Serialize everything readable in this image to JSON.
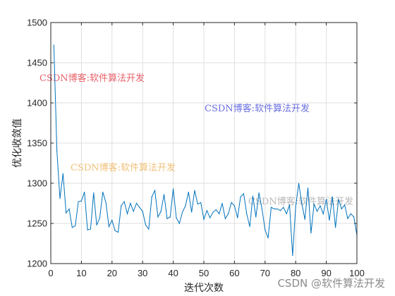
{
  "chart_data": {
    "type": "line",
    "xlabel": "迭代次数",
    "ylabel": "优化收敛值",
    "xlim": [
      0,
      100
    ],
    "ylim": [
      1200,
      1500
    ],
    "xticks": [
      0,
      10,
      20,
      30,
      40,
      50,
      60,
      70,
      80,
      90,
      100
    ],
    "yticks": [
      1200,
      1250,
      1300,
      1350,
      1400,
      1450,
      1500
    ],
    "grid": true,
    "line_color": "#0072bd",
    "series": [
      {
        "x": [
          1,
          2,
          3,
          4,
          5,
          6,
          7,
          8,
          9,
          10,
          11,
          12,
          13,
          14,
          15,
          16,
          17,
          18,
          19,
          20,
          21,
          22,
          23,
          24,
          25,
          26,
          27,
          28,
          29,
          30,
          31,
          32,
          33,
          34,
          35,
          36,
          37,
          38,
          39,
          40,
          41,
          42,
          43,
          44,
          45,
          46,
          47,
          48,
          49,
          50,
          51,
          52,
          53,
          54,
          55,
          56,
          57,
          58,
          59,
          60,
          61,
          62,
          63,
          64,
          65,
          66,
          67,
          68,
          69,
          70,
          71,
          72,
          73,
          74,
          75,
          76,
          77,
          78,
          79,
          80,
          81,
          82,
          83,
          84,
          85,
          86,
          87,
          88,
          89,
          90,
          91,
          92,
          93,
          94,
          95,
          96,
          97,
          98,
          99,
          100
        ],
        "y": [
          1472,
          1340,
          1281,
          1312,
          1263,
          1268,
          1245,
          1247,
          1277,
          1278,
          1289,
          1242,
          1243,
          1288,
          1248,
          1257,
          1289,
          1276,
          1246,
          1254,
          1241,
          1239,
          1272,
          1277,
          1262,
          1275,
          1265,
          1275,
          1270,
          1265,
          1248,
          1243,
          1283,
          1291,
          1258,
          1265,
          1286,
          1256,
          1258,
          1293,
          1257,
          1250,
          1264,
          1272,
          1289,
          1264,
          1291,
          1274,
          1276,
          1255,
          1266,
          1257,
          1264,
          1267,
          1262,
          1275,
          1256,
          1262,
          1276,
          1272,
          1257,
          1283,
          1287,
          1262,
          1246,
          1284,
          1258,
          1288,
          1268,
          1242,
          1232,
          1270,
          1268,
          1268,
          1266,
          1270,
          1262,
          1273,
          1210,
          1271,
          1300,
          1275,
          1255,
          1294,
          1238,
          1274,
          1265,
          1272,
          1262,
          1280,
          1254,
          1283,
          1245,
          1280,
          1268,
          1273,
          1256,
          1262,
          1258,
          1235
        ]
      }
    ]
  },
  "watermarks": [
    {
      "text": "CSDN博客:软件算法开发",
      "color": "#e8606a"
    },
    {
      "text": "CSDN博客:软件算法开发",
      "color": "#6a6fe0"
    },
    {
      "text": "CSDN博客:软件算法开发",
      "color": "#f0c078"
    },
    {
      "text": "CSDN博客:软件算法开发",
      "color": "#b8b8b8"
    }
  ],
  "corner_watermark": "CSDN @软件算法开发"
}
